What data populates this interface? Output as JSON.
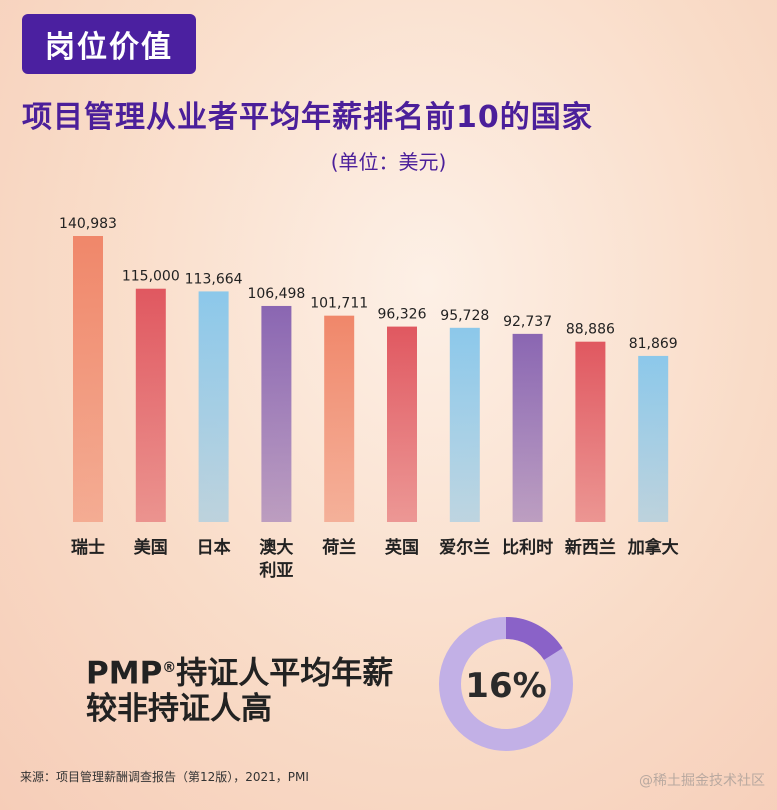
{
  "header": {
    "tag": "岗位价值",
    "title": "项目管理从业者平均年薪排名前10的国家",
    "unit": "(单位：美元)"
  },
  "chart_data": {
    "type": "bar",
    "title": "项目管理从业者平均年薪排名前10的国家",
    "unit": "(单位：美元)",
    "categories": [
      "瑞士",
      "美国",
      "日本",
      "澳大利亚",
      "荷兰",
      "英国",
      "爱尔兰",
      "比利时",
      "新西兰",
      "加拿大"
    ],
    "category_lines": [
      [
        "瑞士"
      ],
      [
        "美国"
      ],
      [
        "日本"
      ],
      [
        "澳大",
        "利亚"
      ],
      [
        "荷兰"
      ],
      [
        "英国"
      ],
      [
        "爱尔兰"
      ],
      [
        "比利时"
      ],
      [
        "新西兰"
      ],
      [
        "加拿大"
      ]
    ],
    "values": [
      140983,
      115000,
      113664,
      106498,
      101711,
      96326,
      95728,
      92737,
      88886,
      81869
    ],
    "value_labels": [
      "140,983",
      "115,000",
      "113,664",
      "106,498",
      "101,711",
      "96,326",
      "95,728",
      "92,737",
      "88,886",
      "81,869"
    ],
    "bar_colors": [
      "#f0876a",
      "#e05860",
      "#8cc8ea",
      "#8a66b2",
      "#f0876a",
      "#e05860",
      "#8cc8ea",
      "#8a66b2",
      "#e05860",
      "#8cc8ea"
    ],
    "ylim": [
      0,
      140983
    ],
    "grid": false
  },
  "pmp": {
    "line1_prefix": "PMP",
    "registered": "®",
    "line1_suffix": "持证人平均年薪",
    "line2": "较非持证人高",
    "percent": "16%",
    "fraction": 0.16,
    "ring_color": "#c2b0e6",
    "highlight_color": "#8a62c8"
  },
  "footer": {
    "source": "来源：项目管理薪酬调查报告（第12版），2021，PMI",
    "watermark": "@稀土掘金技术社区"
  }
}
